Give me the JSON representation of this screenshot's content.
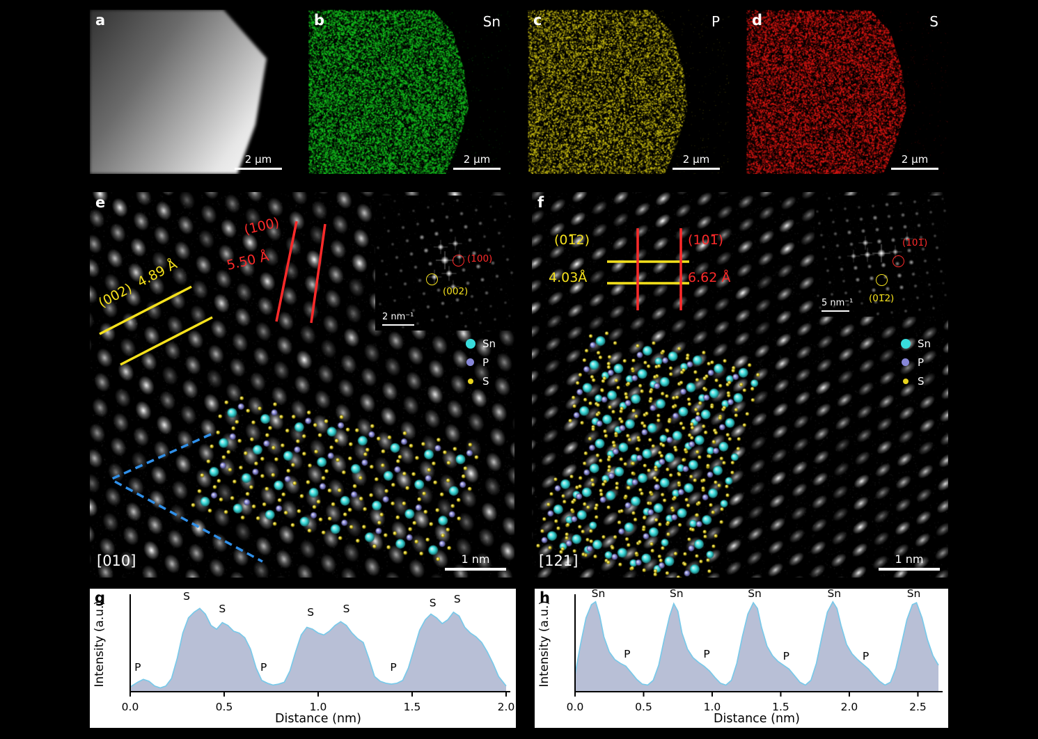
{
  "figure": {
    "colors": {
      "annotation_red": "#ff2a2a",
      "annotation_yellow": "#f5e11c",
      "guide_blue": "#2f8fe8"
    },
    "top_row": [
      {
        "label": "a",
        "scale_bar": "2 μm"
      },
      {
        "label": "b",
        "element": "Sn",
        "scale_bar": "2 μm",
        "map_color": "#14c41e"
      },
      {
        "label": "c",
        "element": "P",
        "scale_bar": "2 μm",
        "map_color": "#c9bd12"
      },
      {
        "label": "d",
        "element": "S",
        "scale_bar": "2 μm",
        "map_color": "#dd1612"
      }
    ],
    "panel_e": {
      "label": "e",
      "zone_axis": "[010]",
      "scale_bar": "1 nm",
      "plane_red": "(100)",
      "spacing_red": "5.50 Å",
      "plane_yellow": "(002)",
      "spacing_yellow": "4.89 Å",
      "fft": {
        "scale": "2 nm⁻¹",
        "red_spot": "(100)",
        "yellow_spot": "(002)"
      },
      "legend": [
        {
          "name": "Sn",
          "color": "#38dcdc"
        },
        {
          "name": "P",
          "color": "#8787d8"
        },
        {
          "name": "S",
          "color": "#e8d41e"
        }
      ]
    },
    "panel_f": {
      "label": "f",
      "zone_axis": "[121]",
      "scale_bar": "1 nm",
      "plane_yellow": "(01̅2)",
      "spacing_yellow": "4.03Å",
      "plane_red": "(101̅)",
      "spacing_red": "6.62 Å",
      "fft": {
        "scale": "5 nm⁻¹",
        "red_spot": "(101̅)",
        "yellow_spot": "(01̅2)"
      },
      "legend": [
        {
          "name": "Sn",
          "color": "#38dcdc"
        },
        {
          "name": "P",
          "color": "#8787d8"
        },
        {
          "name": "S",
          "color": "#e8d41e"
        }
      ]
    }
  },
  "chart_data": [
    {
      "panel_label": "g",
      "type": "area",
      "xlabel": "Distance (nm)",
      "ylabel": "Intensity (a.u.)",
      "xlim": [
        0,
        2.0
      ],
      "ylim": [
        0,
        1
      ],
      "xticks": [
        "0.0",
        "0.5",
        "1.0",
        "1.5",
        "2.0"
      ],
      "xtick_values": [
        0,
        0.5,
        1.0,
        1.5,
        2.0
      ],
      "line_color": "#79c9e9",
      "fill_color": "#b8bfd6",
      "x": [
        0.0,
        0.04,
        0.07,
        0.1,
        0.13,
        0.16,
        0.19,
        0.22,
        0.25,
        0.28,
        0.31,
        0.34,
        0.37,
        0.4,
        0.43,
        0.46,
        0.49,
        0.52,
        0.55,
        0.58,
        0.61,
        0.64,
        0.67,
        0.7,
        0.73,
        0.76,
        0.79,
        0.82,
        0.85,
        0.88,
        0.91,
        0.94,
        0.97,
        1.0,
        1.03,
        1.06,
        1.09,
        1.12,
        1.15,
        1.18,
        1.21,
        1.24,
        1.27,
        1.3,
        1.33,
        1.36,
        1.39,
        1.42,
        1.45,
        1.48,
        1.51,
        1.54,
        1.57,
        1.6,
        1.63,
        1.66,
        1.69,
        1.72,
        1.75,
        1.78,
        1.81,
        1.84,
        1.87,
        1.9,
        1.93,
        1.96,
        2.0
      ],
      "y": [
        0.05,
        0.1,
        0.13,
        0.11,
        0.06,
        0.04,
        0.06,
        0.14,
        0.35,
        0.62,
        0.78,
        0.84,
        0.88,
        0.82,
        0.7,
        0.66,
        0.73,
        0.7,
        0.64,
        0.62,
        0.57,
        0.45,
        0.25,
        0.12,
        0.09,
        0.07,
        0.08,
        0.1,
        0.22,
        0.42,
        0.6,
        0.68,
        0.66,
        0.62,
        0.6,
        0.64,
        0.7,
        0.74,
        0.7,
        0.62,
        0.56,
        0.52,
        0.35,
        0.16,
        0.11,
        0.09,
        0.08,
        0.09,
        0.12,
        0.25,
        0.45,
        0.65,
        0.76,
        0.82,
        0.78,
        0.72,
        0.76,
        0.84,
        0.8,
        0.68,
        0.62,
        0.58,
        0.52,
        0.42,
        0.3,
        0.16,
        0.06
      ],
      "labels": [
        {
          "text": "P",
          "x": 0.04,
          "y": 0.22
        },
        {
          "text": "S",
          "x": 0.3,
          "y": 0.97
        },
        {
          "text": "S",
          "x": 0.49,
          "y": 0.84
        },
        {
          "text": "P",
          "x": 0.71,
          "y": 0.22
        },
        {
          "text": "S",
          "x": 0.96,
          "y": 0.8
        },
        {
          "text": "S",
          "x": 1.15,
          "y": 0.84
        },
        {
          "text": "P",
          "x": 1.4,
          "y": 0.22
        },
        {
          "text": "S",
          "x": 1.61,
          "y": 0.9
        },
        {
          "text": "S",
          "x": 1.74,
          "y": 0.94
        }
      ]
    },
    {
      "panel_label": "h",
      "type": "area",
      "xlabel": "Distance (nm)",
      "ylabel": "Intensity (a.u.)",
      "xlim": [
        0,
        2.65
      ],
      "ylim": [
        0,
        1
      ],
      "xticks": [
        "0.0",
        "0.5",
        "1.0",
        "1.5",
        "2.0",
        "2.5"
      ],
      "xtick_values": [
        0,
        0.5,
        1.0,
        1.5,
        2.0,
        2.5
      ],
      "line_color": "#79c9e9",
      "fill_color": "#b8bfd6",
      "x": [
        0.0,
        0.04,
        0.08,
        0.12,
        0.15,
        0.18,
        0.21,
        0.25,
        0.29,
        0.33,
        0.37,
        0.41,
        0.45,
        0.49,
        0.53,
        0.57,
        0.61,
        0.65,
        0.69,
        0.72,
        0.75,
        0.78,
        0.82,
        0.86,
        0.9,
        0.94,
        0.98,
        1.02,
        1.06,
        1.1,
        1.14,
        1.18,
        1.22,
        1.26,
        1.3,
        1.33,
        1.36,
        1.4,
        1.44,
        1.48,
        1.52,
        1.56,
        1.6,
        1.64,
        1.68,
        1.72,
        1.76,
        1.8,
        1.84,
        1.88,
        1.91,
        1.94,
        1.98,
        2.02,
        2.06,
        2.1,
        2.14,
        2.18,
        2.22,
        2.26,
        2.3,
        2.34,
        2.38,
        2.42,
        2.46,
        2.49,
        2.53,
        2.57,
        2.61,
        2.65
      ],
      "y": [
        0.18,
        0.5,
        0.78,
        0.92,
        0.95,
        0.8,
        0.58,
        0.42,
        0.34,
        0.3,
        0.27,
        0.2,
        0.13,
        0.08,
        0.07,
        0.12,
        0.28,
        0.55,
        0.8,
        0.93,
        0.85,
        0.62,
        0.45,
        0.36,
        0.31,
        0.27,
        0.22,
        0.15,
        0.09,
        0.07,
        0.12,
        0.3,
        0.58,
        0.82,
        0.94,
        0.88,
        0.68,
        0.48,
        0.38,
        0.32,
        0.28,
        0.24,
        0.17,
        0.1,
        0.07,
        0.12,
        0.3,
        0.58,
        0.84,
        0.95,
        0.88,
        0.7,
        0.5,
        0.4,
        0.34,
        0.29,
        0.24,
        0.17,
        0.11,
        0.07,
        0.1,
        0.25,
        0.5,
        0.76,
        0.92,
        0.94,
        0.78,
        0.55,
        0.38,
        0.28
      ],
      "labels": [
        {
          "text": "Sn",
          "x": 0.17,
          "y": 1.0
        },
        {
          "text": "P",
          "x": 0.38,
          "y": 0.36
        },
        {
          "text": "Sn",
          "x": 0.74,
          "y": 1.0
        },
        {
          "text": "P",
          "x": 0.96,
          "y": 0.36
        },
        {
          "text": "Sn",
          "x": 1.31,
          "y": 1.0
        },
        {
          "text": "P",
          "x": 1.54,
          "y": 0.34
        },
        {
          "text": "Sn",
          "x": 1.89,
          "y": 1.0
        },
        {
          "text": "P",
          "x": 2.12,
          "y": 0.34
        },
        {
          "text": "Sn",
          "x": 2.47,
          "y": 1.0
        }
      ]
    }
  ]
}
